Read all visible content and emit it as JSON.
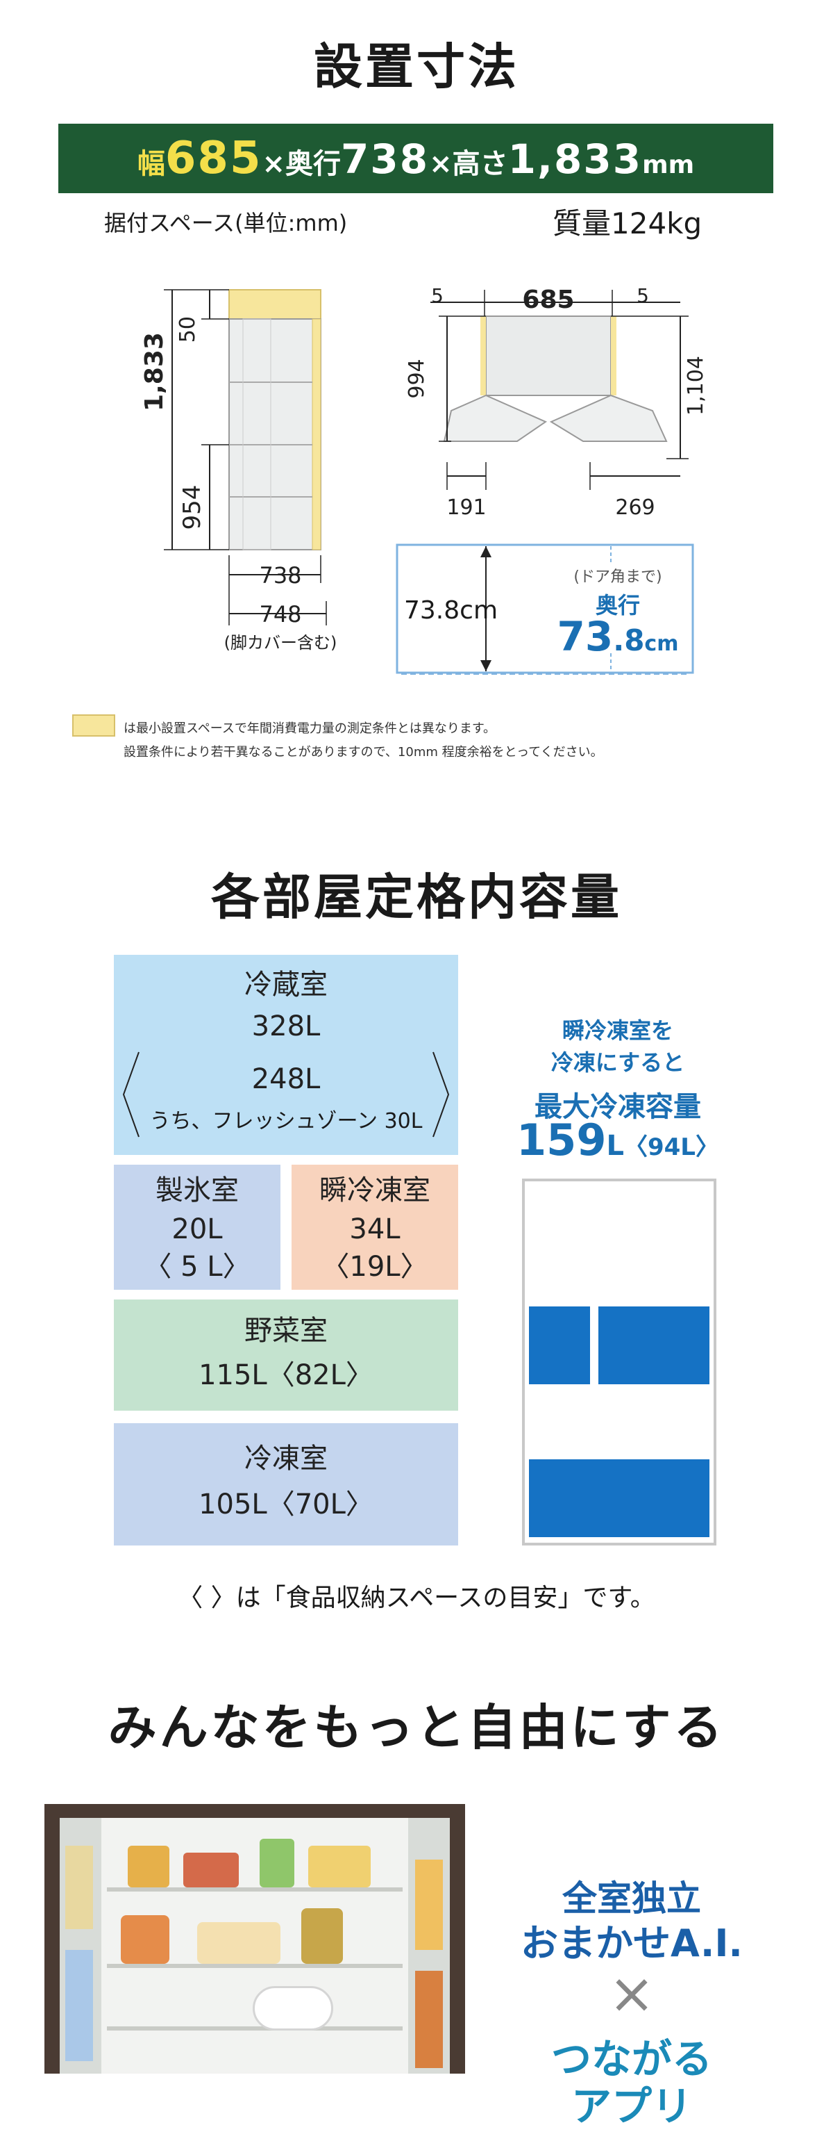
{
  "section1": {
    "title": "設置寸法",
    "dims": {
      "width_label": "幅",
      "width": "685",
      "x1": "×",
      "depth_label": "奥行",
      "depth": "738",
      "x2": "×",
      "height_label": "高さ",
      "height": "1,833",
      "unit": "mm"
    },
    "space_note": "据付スペース(単位:mm)",
    "mass": "質量124kg",
    "side": {
      "top": "50",
      "total": "1,833",
      "lower": "954",
      "depth1": "738",
      "depth2": "748",
      "depth2_note": "(脚カバー含む)"
    },
    "top_view": {
      "left_gap": "5",
      "width": "685",
      "right_gap": "5",
      "left_depth": "994",
      "right_depth": "1,104",
      "left_open": "191",
      "right_open": "269"
    },
    "door": {
      "value": "73.8cm",
      "note": "(ドア角まで)",
      "label": "奥行",
      "big_num": "73",
      "big_dec": ".8",
      "big_unit": "cm"
    },
    "legend_line1": "は最小設置スペースで年間消費電力量の測定条件とは異なります。",
    "legend_line2": "設置条件により若干異なることがありますので、10mm 程度余裕をとってください。",
    "colors": {
      "bar": "#1e5a33",
      "accent": "#f3df4a",
      "space": "#f7e69c"
    }
  },
  "section2": {
    "title": "各部屋定格内容量",
    "fridge": {
      "name": "冷蔵室",
      "total": "328L",
      "store": "248L",
      "fresh": "うち、フレッシュゾーン 30L"
    },
    "ice": {
      "name": "製氷室",
      "total": "20L",
      "store": "〈 5 L〉"
    },
    "instant": {
      "name": "瞬冷凍室",
      "total": "34L",
      "store": "〈19L〉"
    },
    "veg": {
      "name": "野菜室",
      "value": "115L〈82L〉"
    },
    "freezer": {
      "name": "冷凍室",
      "value": "105L〈70L〉"
    },
    "promo": {
      "line1": "瞬冷凍室を",
      "line2": "冷凍にすると",
      "line3": "最大冷凍容量",
      "num": "159",
      "unit": "L",
      "store": "〈94L〉"
    },
    "footnote": "〈 〉は「食品収納スペースの目安」です。",
    "colors": {
      "fridge": "#bde0f5",
      "ice": "#c5d5ee",
      "instant": "#f8d3bd",
      "veg": "#c4e3cf",
      "freezer": "#c4d5ee",
      "blue": "#1572c4"
    }
  },
  "section3": {
    "title": "みんなをもっと自由にする",
    "badge1": "全室独立",
    "badge2": "おまかせA.I.",
    "times": "×",
    "badge3": "つながる",
    "badge4": "アプリ"
  }
}
